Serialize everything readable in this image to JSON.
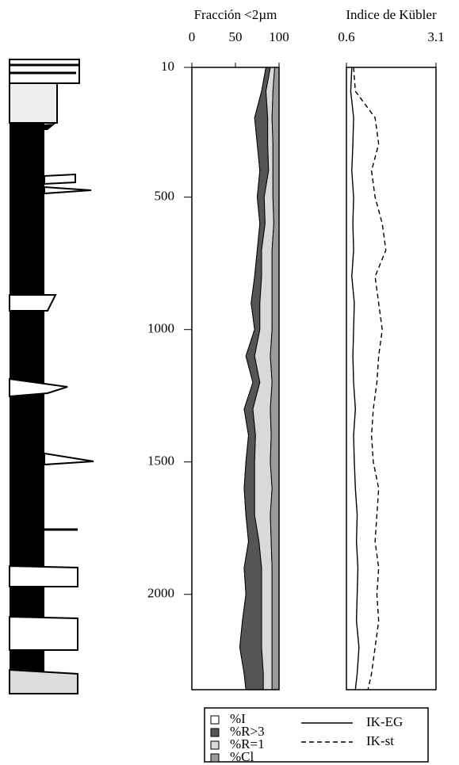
{
  "chart_data": [
    {
      "type": "stacked_area",
      "title": "Fracción <2µm",
      "y": [
        10,
        100,
        200,
        300,
        400,
        500,
        600,
        700,
        800,
        900,
        1000,
        1100,
        1200,
        1300,
        1400,
        1500,
        1600,
        1700,
        1800,
        1900,
        2000,
        2100,
        2200,
        2300,
        2360
      ],
      "ylim": [
        10,
        2360
      ],
      "yticks": [
        10,
        500,
        1000,
        1500,
        2000
      ],
      "xlim": [
        0,
        100
      ],
      "xticks": [
        0,
        50,
        100
      ],
      "series": [
        {
          "name": "%I",
          "color": "#ffffff",
          "values": [
            85,
            80,
            72,
            75,
            78,
            75,
            78,
            75,
            72,
            68,
            72,
            62,
            70,
            60,
            65,
            62,
            60,
            62,
            65,
            60,
            62,
            58,
            55,
            60,
            62
          ]
        },
        {
          "name": "%R>3",
          "color": "#555555",
          "values": [
            5,
            5,
            15,
            12,
            10,
            8,
            6,
            5,
            8,
            10,
            6,
            10,
            8,
            10,
            8,
            10,
            12,
            10,
            12,
            20,
            18,
            22,
            25,
            22,
            20
          ]
        },
        {
          "name": "%R=1",
          "color": "#d9d9d9",
          "values": [
            5,
            8,
            5,
            6,
            5,
            10,
            10,
            12,
            12,
            14,
            14,
            18,
            14,
            20,
            18,
            18,
            20,
            18,
            14,
            12,
            12,
            12,
            12,
            10,
            10
          ]
        },
        {
          "name": "%Cl",
          "color": "#9a9a9a",
          "values": [
            5,
            7,
            8,
            7,
            7,
            7,
            6,
            8,
            8,
            8,
            8,
            10,
            8,
            10,
            9,
            10,
            8,
            10,
            9,
            8,
            8,
            8,
            8,
            8,
            8
          ]
        }
      ]
    },
    {
      "type": "line",
      "title": "Indice de Kübler",
      "y": [
        10,
        100,
        200,
        300,
        400,
        500,
        600,
        700,
        800,
        900,
        1000,
        1100,
        1200,
        1300,
        1400,
        1500,
        1600,
        1700,
        1800,
        1900,
        2000,
        2100,
        2200,
        2300,
        2360
      ],
      "ylim": [
        10,
        2360
      ],
      "xlim": [
        0.6,
        3.1
      ],
      "xticks": [
        0.6,
        3.1
      ],
      "series": [
        {
          "name": "IK-EG",
          "color": "#000000",
          "line_style": "solid",
          "values": [
            0.75,
            0.72,
            0.8,
            0.78,
            0.75,
            0.8,
            0.78,
            0.8,
            0.75,
            0.82,
            0.8,
            0.78,
            0.8,
            0.85,
            0.8,
            0.82,
            0.85,
            0.9,
            0.88,
            0.92,
            0.9,
            0.88,
            0.95,
            0.9,
            0.85
          ]
        },
        {
          "name": "IK-st",
          "color": "#000000",
          "line_style": "dashed",
          "values": [
            0.8,
            0.85,
            1.4,
            1.5,
            1.3,
            1.4,
            1.6,
            1.7,
            1.4,
            1.5,
            1.6,
            1.5,
            1.45,
            1.35,
            1.3,
            1.35,
            1.5,
            1.45,
            1.4,
            1.5,
            1.45,
            1.5,
            1.4,
            1.3,
            1.2
          ]
        }
      ]
    }
  ]
}
